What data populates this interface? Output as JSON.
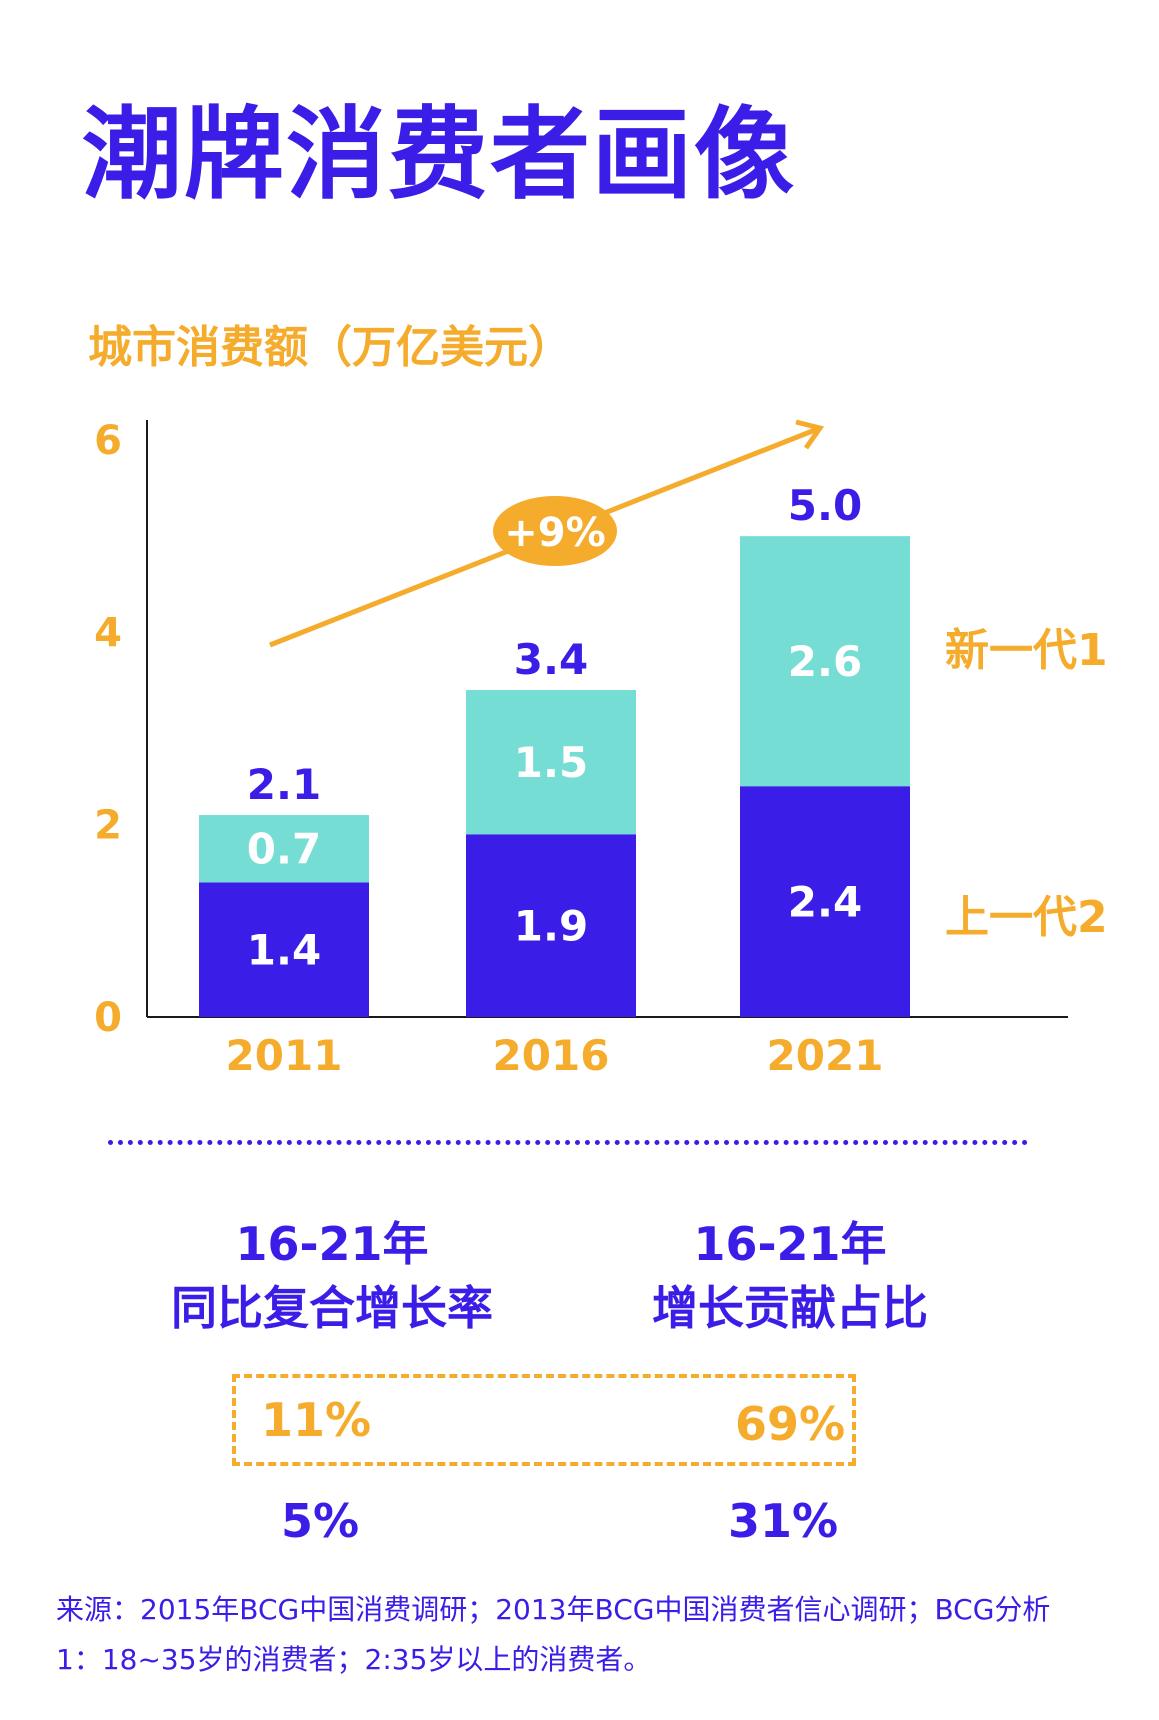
{
  "title": "潮牌消费者画像",
  "colors": {
    "primary": "#3a1ee8",
    "accent": "#f5ab2b",
    "teal": "#76ddd4",
    "axis": "#1a1a1a"
  },
  "chart_data": {
    "type": "bar",
    "stacked": true,
    "title": "城市消费额（万亿美元）",
    "xlabel": "",
    "ylabel": "城市消费额（万亿美元）",
    "ylim": [
      0,
      6
    ],
    "yticks": [
      "0",
      "2",
      "4",
      "6"
    ],
    "categories": [
      "2011",
      "2016",
      "2021"
    ],
    "series": [
      {
        "name": "上一代2",
        "values": [
          1.4,
          1.9,
          2.4
        ],
        "labels": [
          "1.4",
          "1.9",
          "2.4"
        ],
        "color": "#3a1ee8"
      },
      {
        "name": "新一代1",
        "values": [
          0.7,
          1.5,
          2.6
        ],
        "labels": [
          "0.7",
          "1.5",
          "2.6"
        ],
        "color": "#76ddd4"
      }
    ],
    "totals": [
      "2.1",
      "3.4",
      "5.0"
    ],
    "trend_annotation": "+9%"
  },
  "metrics": {
    "cagr_period": "16-21年",
    "cagr_label": "同比复合增长率",
    "share_period": "16-21年",
    "share_label": "增长贡献占比",
    "new_gen_cagr": "11%",
    "new_gen_share": "69%",
    "old_gen_cagr": "5%",
    "old_gen_share": "31%"
  },
  "footnotes": {
    "source": "来源：2015年BCG中国消费调研；2013年BCG中国消费者信心调研；BCG分析",
    "definitions": "1：18~35岁的消费者；2:35岁以上的消费者。"
  }
}
